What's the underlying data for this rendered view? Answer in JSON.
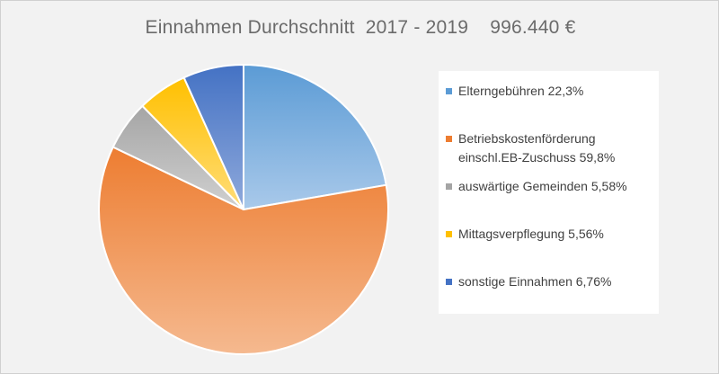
{
  "chart_data": {
    "type": "pie",
    "title": "Einnahmen Durchschnitt  2017 - 2019    996.440 €",
    "slices": [
      {
        "label": "Elterngebühren  22,3%",
        "value": 22.3,
        "color": "#5b9bd5",
        "color_light": "#a9c9ea"
      },
      {
        "label": "Betriebskostenförderung\neinschl.EB-Zuschuss  59,8%",
        "value": 59.8,
        "color": "#ed7d31",
        "color_light": "#f5b98f"
      },
      {
        "label": "auswärtige Gemeinden 5,58%",
        "value": 5.58,
        "color": "#a5a5a5",
        "color_light": "#d0d0d0"
      },
      {
        "label": "Mittagsverpflegung 5,56%",
        "value": 5.56,
        "color": "#ffc000",
        "color_light": "#ffdd7a"
      },
      {
        "label": "sonstige Einnahmen 6,76%",
        "value": 6.76,
        "color": "#4472c4",
        "color_light": "#8fa9db"
      }
    ],
    "legend_position": "right"
  }
}
